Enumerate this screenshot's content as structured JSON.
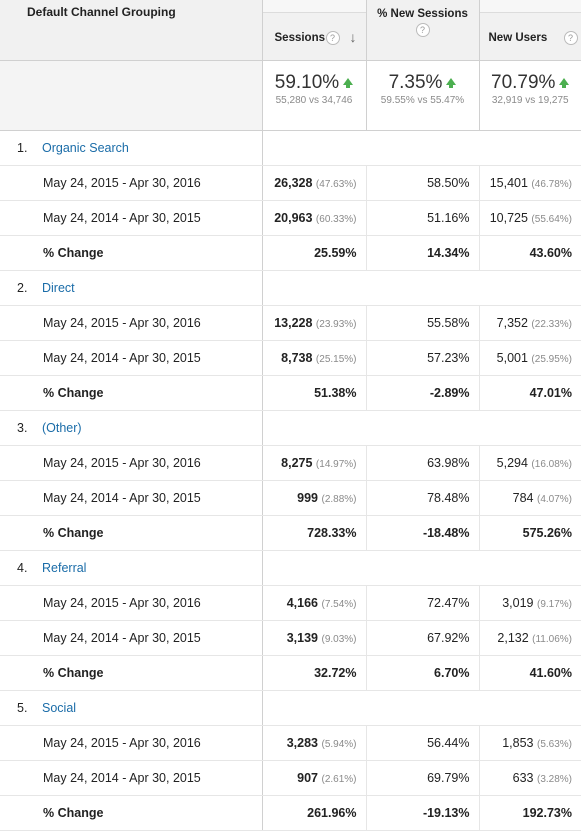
{
  "header": {
    "dimension": "Default Channel Grouping",
    "sessions": "Sessions",
    "new_sessions": "% New Sessions",
    "new_users": "New Users",
    "help": "?",
    "sort": "↓"
  },
  "summary": {
    "sessions": {
      "pct": "59.10%",
      "detail": "55,280 vs 34,746"
    },
    "new_sessions": {
      "pct": "7.35%",
      "detail": "59.55% vs 55.47%"
    },
    "new_users": {
      "pct": "70.79%",
      "detail": "32,919 vs 19,275"
    }
  },
  "groups": [
    {
      "num": "1.",
      "name": "Organic Search",
      "rows": [
        {
          "label": "May 24, 2015 - Apr 30, 2016",
          "sessions": "26,328",
          "sessions_pct": "(47.63%)",
          "new_sessions": "58.50%",
          "users": "15,401",
          "users_pct": "(46.78%)"
        },
        {
          "label": "May 24, 2014 - Apr 30, 2015",
          "sessions": "20,963",
          "sessions_pct": "(60.33%)",
          "new_sessions": "51.16%",
          "users": "10,725",
          "users_pct": "(55.64%)"
        }
      ],
      "change": {
        "label": "% Change",
        "sessions": "25.59%",
        "new_sessions": "14.34%",
        "users": "43.60%"
      }
    },
    {
      "num": "2.",
      "name": "Direct",
      "rows": [
        {
          "label": "May 24, 2015 - Apr 30, 2016",
          "sessions": "13,228",
          "sessions_pct": "(23.93%)",
          "new_sessions": "55.58%",
          "users": "7,352",
          "users_pct": "(22.33%)"
        },
        {
          "label": "May 24, 2014 - Apr 30, 2015",
          "sessions": "8,738",
          "sessions_pct": "(25.15%)",
          "new_sessions": "57.23%",
          "users": "5,001",
          "users_pct": "(25.95%)"
        }
      ],
      "change": {
        "label": "% Change",
        "sessions": "51.38%",
        "new_sessions": "-2.89%",
        "users": "47.01%"
      }
    },
    {
      "num": "3.",
      "name": "(Other)",
      "rows": [
        {
          "label": "May 24, 2015 - Apr 30, 2016",
          "sessions": "8,275",
          "sessions_pct": "(14.97%)",
          "new_sessions": "63.98%",
          "users": "5,294",
          "users_pct": "(16.08%)"
        },
        {
          "label": "May 24, 2014 - Apr 30, 2015",
          "sessions": "999",
          "sessions_pct": "(2.88%)",
          "new_sessions": "78.48%",
          "users": "784",
          "users_pct": "(4.07%)"
        }
      ],
      "change": {
        "label": "% Change",
        "sessions": "728.33%",
        "new_sessions": "-18.48%",
        "users": "575.26%"
      }
    },
    {
      "num": "4.",
      "name": "Referral",
      "rows": [
        {
          "label": "May 24, 2015 - Apr 30, 2016",
          "sessions": "4,166",
          "sessions_pct": "(7.54%)",
          "new_sessions": "72.47%",
          "users": "3,019",
          "users_pct": "(9.17%)"
        },
        {
          "label": "May 24, 2014 - Apr 30, 2015",
          "sessions": "3,139",
          "sessions_pct": "(9.03%)",
          "new_sessions": "67.92%",
          "users": "2,132",
          "users_pct": "(11.06%)"
        }
      ],
      "change": {
        "label": "% Change",
        "sessions": "32.72%",
        "new_sessions": "6.70%",
        "users": "41.60%"
      }
    },
    {
      "num": "5.",
      "name": "Social",
      "rows": [
        {
          "label": "May 24, 2015 - Apr 30, 2016",
          "sessions": "3,283",
          "sessions_pct": "(5.94%)",
          "new_sessions": "56.44%",
          "users": "1,853",
          "users_pct": "(5.63%)"
        },
        {
          "label": "May 24, 2014 - Apr 30, 2015",
          "sessions": "907",
          "sessions_pct": "(2.61%)",
          "new_sessions": "69.79%",
          "users": "633",
          "users_pct": "(3.28%)"
        }
      ],
      "change": {
        "label": "% Change",
        "sessions": "261.96%",
        "new_sessions": "-19.13%",
        "users": "192.73%"
      }
    }
  ]
}
